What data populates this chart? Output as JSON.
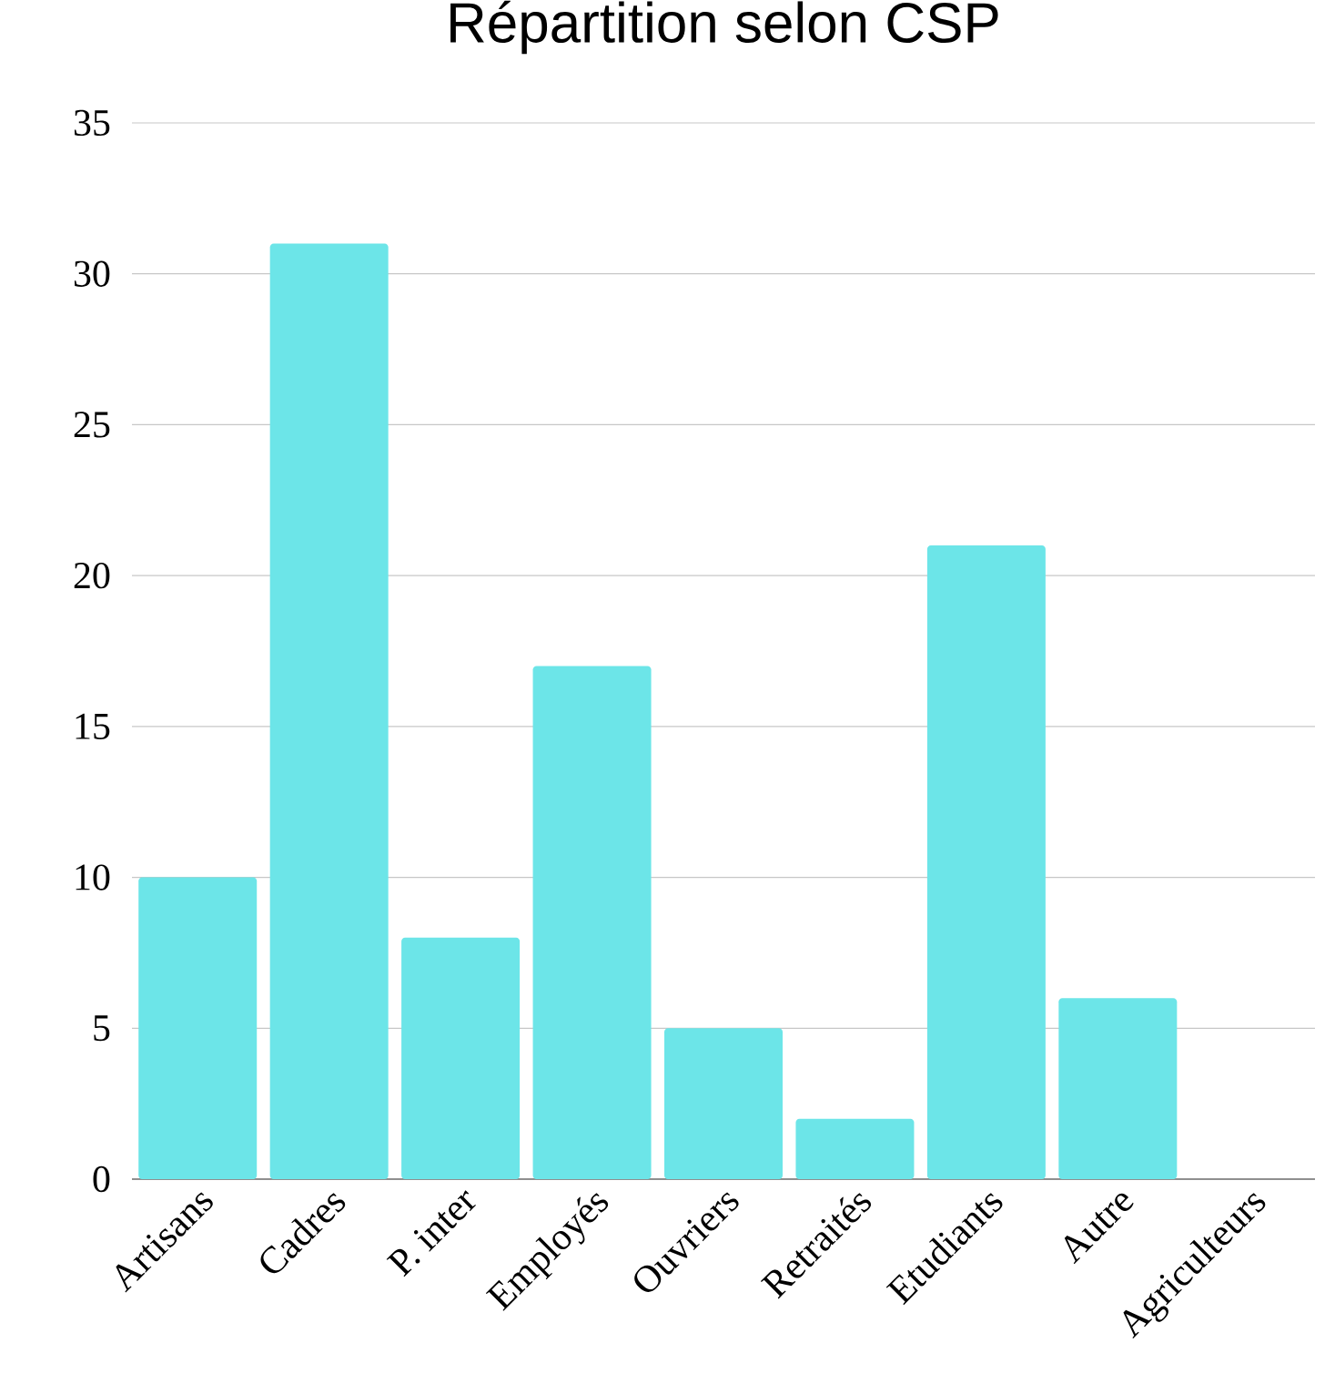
{
  "chart_data": {
    "type": "bar",
    "title": "Répartition selon CSP",
    "categories": [
      "Artisans",
      "Cadres",
      "P. inter",
      "Employés",
      "Ouvriers",
      "Retraités",
      "Etudiants",
      "Autre",
      "Agriculteurs"
    ],
    "values": [
      10,
      31,
      8,
      17,
      5,
      2,
      21,
      6,
      0
    ],
    "color": "#6ce5e8",
    "ylim": [
      0,
      35
    ],
    "yticks": [
      0,
      5,
      10,
      15,
      20,
      25,
      30,
      35
    ],
    "grid": "y"
  }
}
